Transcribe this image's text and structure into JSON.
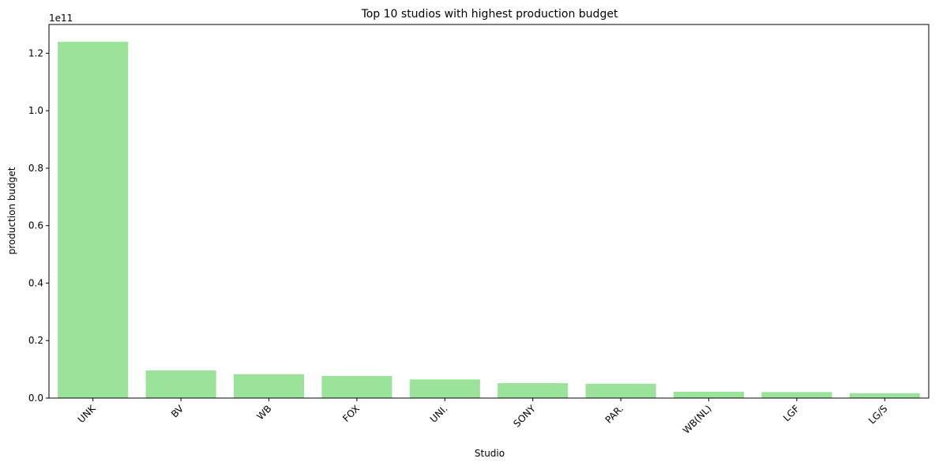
{
  "chart_data": {
    "type": "bar",
    "title": "Top 10 studios with highest production budget",
    "xlabel": "Studio",
    "ylabel": "production budget",
    "y_offset_label": "1e11",
    "categories": [
      "UNK",
      "BV",
      "WB",
      "FOX",
      "UNI.",
      "SONY",
      "PAR.",
      "WB(NL)",
      "LGF",
      "LG/S"
    ],
    "values": [
      124000000000,
      9600000000,
      8300000000,
      7700000000,
      6500000000,
      5200000000,
      5000000000,
      2200000000,
      2100000000,
      1700000000
    ],
    "ylim": [
      0,
      130000000000
    ],
    "yticks": [
      0,
      20000000000,
      40000000000,
      60000000000,
      80000000000,
      100000000000,
      120000000000
    ],
    "ytick_labels": [
      "0.0",
      "0.2",
      "0.4",
      "0.6",
      "0.8",
      "1.0",
      "1.2"
    ],
    "bar_color": "#9be39b",
    "grid": false,
    "legend": "none"
  }
}
